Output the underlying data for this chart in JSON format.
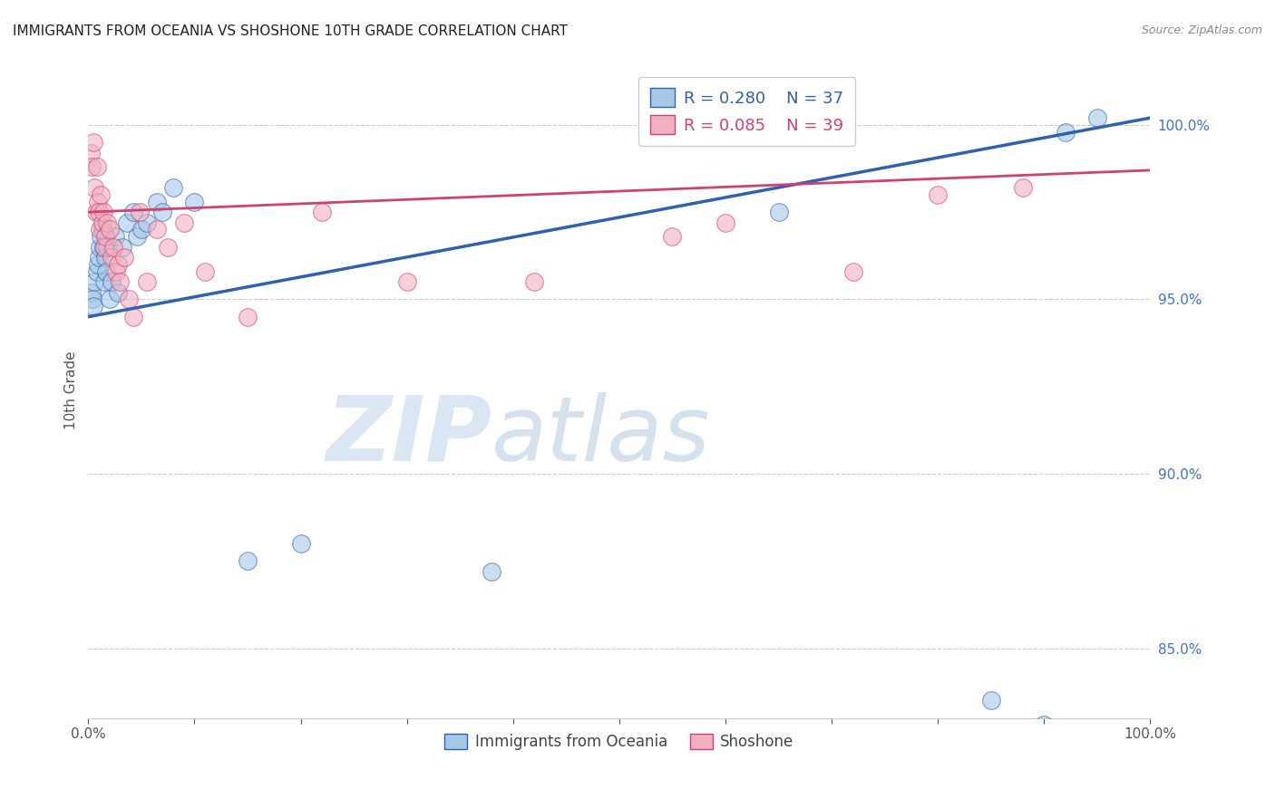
{
  "title": "IMMIGRANTS FROM OCEANIA VS SHOSHONE 10TH GRADE CORRELATION CHART",
  "source": "Source: ZipAtlas.com",
  "ylabel": "10th Grade",
  "blue_label": "Immigrants from Oceania",
  "pink_label": "Shoshone",
  "legend_R_blue": "R = 0.280",
  "legend_N_blue": "N = 37",
  "legend_R_pink": "R = 0.085",
  "legend_N_pink": "N = 39",
  "blue_color": "#a8c8e8",
  "pink_color": "#f0b0c0",
  "blue_line_color": "#3060b0",
  "pink_line_color": "#d04070",
  "xmin": 0.0,
  "xmax": 100.0,
  "ymin": 83.0,
  "ymax": 101.8,
  "ytick_vals": [
    85.0,
    90.0,
    95.0,
    100.0
  ],
  "ytick_labels": [
    "85.0%",
    "90.0%",
    "95.0%",
    "100.0%"
  ],
  "blue_x": [
    0.3,
    0.4,
    0.5,
    0.6,
    0.8,
    0.9,
    1.0,
    1.1,
    1.2,
    1.3,
    1.4,
    1.5,
    1.6,
    1.7,
    1.8,
    2.0,
    2.2,
    2.5,
    2.8,
    3.2,
    3.6,
    4.2,
    4.6,
    5.0,
    5.5,
    6.5,
    7.0,
    8.0,
    10.0,
    15.0,
    20.0,
    38.0,
    65.0,
    85.0,
    90.0,
    92.0,
    95.0
  ],
  "blue_y": [
    95.2,
    95.0,
    94.8,
    95.5,
    95.8,
    96.0,
    96.2,
    96.5,
    96.8,
    97.0,
    96.5,
    95.5,
    96.2,
    95.8,
    96.5,
    95.0,
    95.5,
    96.8,
    95.2,
    96.5,
    97.2,
    97.5,
    96.8,
    97.0,
    97.2,
    97.8,
    97.5,
    98.2,
    97.8,
    87.5,
    88.0,
    87.2,
    97.5,
    83.5,
    82.8,
    99.8,
    100.2
  ],
  "pink_x": [
    0.2,
    0.3,
    0.5,
    0.6,
    0.7,
    0.8,
    0.9,
    1.0,
    1.1,
    1.2,
    1.3,
    1.4,
    1.5,
    1.6,
    1.8,
    2.0,
    2.2,
    2.4,
    2.6,
    2.8,
    3.0,
    3.4,
    3.8,
    4.2,
    4.8,
    5.5,
    6.5,
    7.5,
    9.0,
    11.0,
    15.0,
    22.0,
    30.0,
    42.0,
    55.0,
    60.0,
    72.0,
    80.0,
    88.0
  ],
  "pink_y": [
    99.2,
    98.8,
    99.5,
    98.2,
    97.5,
    98.8,
    97.8,
    97.5,
    97.0,
    98.0,
    97.2,
    97.5,
    96.5,
    96.8,
    97.2,
    97.0,
    96.2,
    96.5,
    95.8,
    96.0,
    95.5,
    96.2,
    95.0,
    94.5,
    97.5,
    95.5,
    97.0,
    96.5,
    97.2,
    95.8,
    94.5,
    97.5,
    95.5,
    95.5,
    96.8,
    97.2,
    95.8,
    98.0,
    98.2
  ],
  "blue_trend_x": [
    0.0,
    100.0
  ],
  "blue_trend_y": [
    94.5,
    100.2
  ],
  "pink_trend_x": [
    0.0,
    100.0
  ],
  "pink_trend_y": [
    97.5,
    98.7
  ],
  "watermark_zip": "ZIP",
  "watermark_atlas": "atlas",
  "background_color": "#ffffff",
  "grid_color": "#cccccc",
  "ytick_color": "#4472C4",
  "title_color": "#222222",
  "source_color": "#888888",
  "legend_edge_color": "#cccccc"
}
